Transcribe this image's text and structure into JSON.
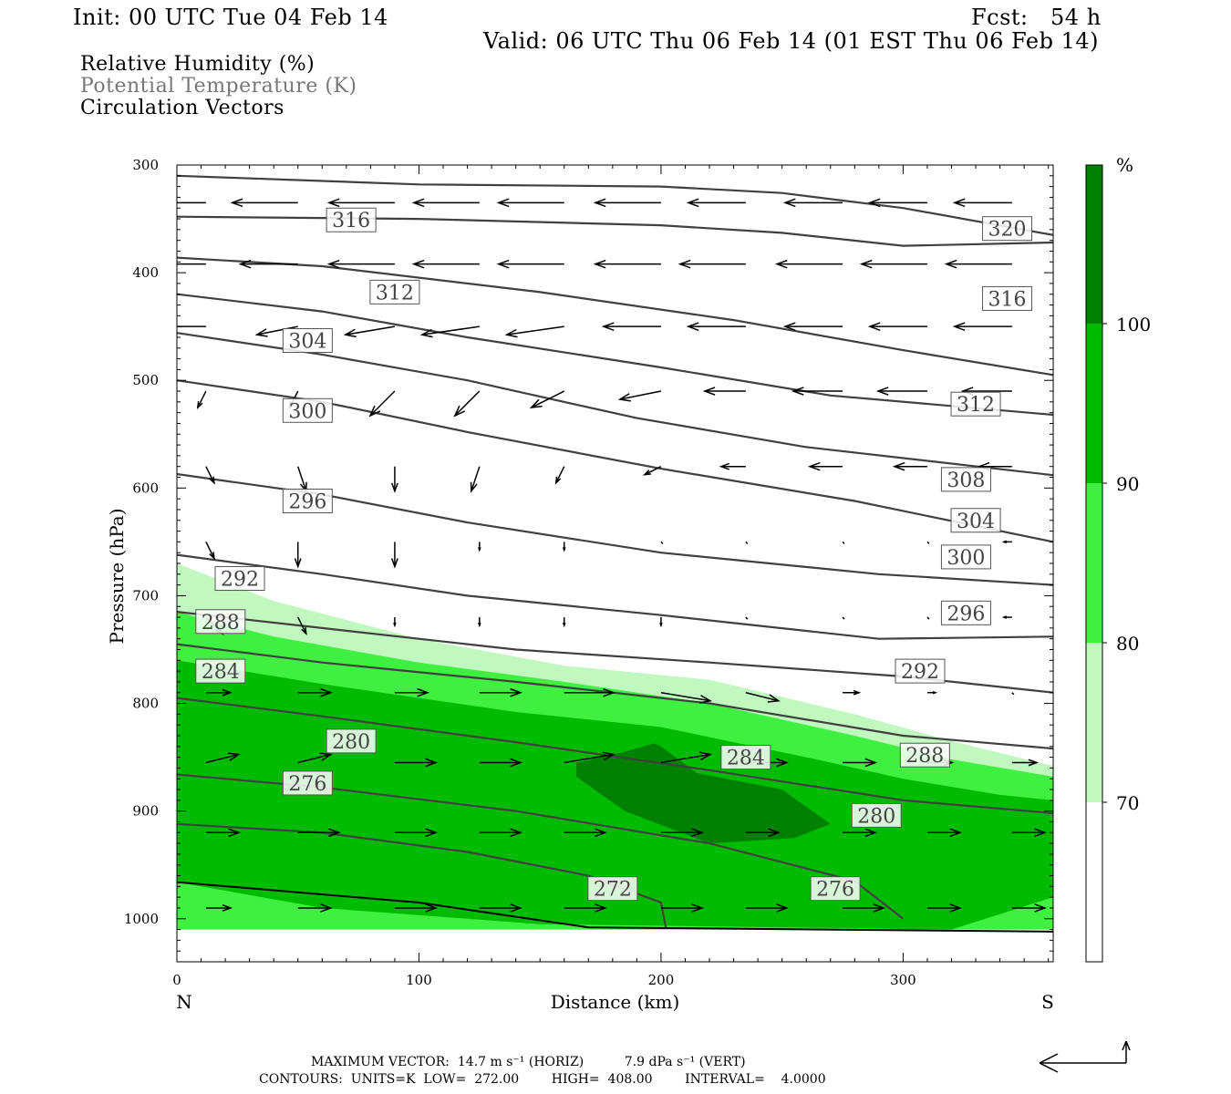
{
  "header": {
    "init": "Init: 00 UTC Tue 04 Feb 14",
    "fcst": "Fcst:   54 h",
    "valid": "Valid: 06 UTC Thu 06 Feb 14 (01 EST Thu 06 Feb 14)"
  },
  "legend": {
    "rh": "Relative Humidity (%)",
    "theta": "Potential Temperature (K)",
    "vectors": "Circulation Vectors"
  },
  "footer": {
    "max_vector": "MAXIMUM VECTOR:  14.7 m s⁻¹ (HORIZ)          7.9 dPa s⁻¹ (VERT)",
    "contours": "CONTOURS:  UNITS=K  LOW=  272.00        HIGH=  408.00        INTERVAL=    4.0000"
  },
  "colors": {
    "rh_70_80": "#c0f8c0",
    "rh_80_90": "#40f040",
    "rh_90_100": "#00bb00",
    "rh_100": "#008000",
    "theta_line": "#404040"
  },
  "chart_data": {
    "type": "cross-section",
    "xlabel": "Distance (km)",
    "ylabel": "Pressure (hPa)",
    "xlim": [
      0,
      362
    ],
    "ylim": [
      1040,
      300
    ],
    "x_ticks": [
      0,
      100,
      200,
      300
    ],
    "y_ticks": [
      300,
      400,
      500,
      600,
      700,
      800,
      900,
      1000
    ],
    "endpoint_left": "N",
    "endpoint_right": "S",
    "colorbar": {
      "unit": "%",
      "levels": [
        70,
        80,
        90,
        100
      ]
    },
    "theta_contours": [
      {
        "value": 320,
        "label": "320",
        "label_at": [
          343,
          359
        ],
        "points": [
          [
            0,
            310
          ],
          [
            100,
            318
          ],
          [
            200,
            320
          ],
          [
            250,
            326
          ],
          [
            300,
            340
          ],
          [
            362,
            365
          ]
        ]
      },
      {
        "value": 316,
        "label": "316",
        "label_at": [
          72,
          351
        ],
        "points": [
          [
            0,
            348
          ],
          [
            100,
            350
          ],
          [
            200,
            356
          ],
          [
            250,
            363
          ],
          [
            300,
            375
          ],
          [
            362,
            372
          ]
        ]
      },
      {
        "value": 316,
        "label": "316",
        "label_at": [
          343,
          424
        ],
        "points": [
          [
            0,
            386
          ],
          [
            60,
            394
          ],
          [
            150,
            418
          ],
          [
            230,
            444
          ],
          [
            300,
            472
          ],
          [
            362,
            495
          ]
        ]
      },
      {
        "value": 312,
        "label": "312",
        "label_at": [
          90,
          418
        ],
        "points": [
          [
            0,
            420
          ],
          [
            60,
            436
          ],
          [
            120,
            460
          ],
          [
            200,
            488
          ],
          [
            270,
            514
          ],
          [
            362,
            532
          ]
        ]
      },
      {
        "value": 312,
        "label": "312",
        "label_at": [
          330,
          522
        ],
        "points": [
          [
            0,
            456
          ],
          [
            60,
            476
          ],
          [
            120,
            500
          ],
          [
            190,
            535
          ],
          [
            260,
            562
          ],
          [
            362,
            588
          ]
        ]
      },
      {
        "value": 304,
        "label": "304",
        "label_at": [
          54,
          463
        ],
        "points": [
          [
            0,
            500
          ],
          [
            60,
            520
          ],
          [
            120,
            548
          ],
          [
            200,
            582
          ],
          [
            280,
            612
          ],
          [
            362,
            650
          ]
        ]
      },
      {
        "value": 300,
        "label": "300",
        "label_at": [
          54,
          528
        ],
        "points": [
          [
            0,
            587
          ],
          [
            60,
            606
          ],
          [
            120,
            632
          ],
          [
            200,
            660
          ],
          [
            290,
            680
          ],
          [
            362,
            690
          ]
        ]
      },
      {
        "value": 296,
        "label": "296",
        "label_at": [
          54,
          612
        ],
        "points": [
          [
            0,
            662
          ],
          [
            60,
            680
          ],
          [
            120,
            700
          ],
          [
            200,
            718
          ],
          [
            290,
            740
          ],
          [
            362,
            738
          ]
        ]
      },
      {
        "value": 292,
        "label": "292",
        "label_at": [
          26,
          684
        ],
        "points": [
          [
            0,
            715
          ],
          [
            60,
            730
          ],
          [
            140,
            750
          ],
          [
            220,
            762
          ],
          [
            300,
            775
          ],
          [
            362,
            790
          ]
        ]
      },
      {
        "value": 288,
        "label": "288",
        "label_at": [
          18,
          724
        ],
        "points": [
          [
            0,
            745
          ],
          [
            60,
            762
          ],
          [
            140,
            780
          ],
          [
            220,
            800
          ],
          [
            300,
            830
          ],
          [
            362,
            842
          ]
        ]
      },
      {
        "value": 284,
        "label": "284",
        "label_at": [
          18,
          770
        ],
        "points": [
          [
            0,
            795
          ],
          [
            60,
            812
          ],
          [
            140,
            836
          ],
          [
            220,
            862
          ],
          [
            300,
            890
          ],
          [
            362,
            902
          ]
        ]
      },
      {
        "value": 280,
        "label": "280",
        "label_at": [
          72,
          835
        ],
        "points": [
          [
            0,
            866
          ],
          [
            60,
            878
          ],
          [
            140,
            900
          ],
          [
            220,
            930
          ],
          [
            280,
            965
          ],
          [
            300,
            1000
          ]
        ]
      },
      {
        "value": 276,
        "label": "276",
        "label_at": [
          54,
          874
        ],
        "points": [
          [
            0,
            912
          ],
          [
            60,
            920
          ],
          [
            120,
            938
          ],
          [
            170,
            960
          ],
          [
            200,
            985
          ],
          [
            202,
            1008
          ]
        ]
      },
      {
        "value": 272,
        "label": "272",
        "label_at": [
          180,
          972
        ],
        "points": []
      },
      {
        "value": 276,
        "label": "276",
        "label_at": [
          272,
          972
        ],
        "points": []
      },
      {
        "value": 280,
        "label": "280",
        "label_at": [
          289,
          904
        ],
        "points": []
      },
      {
        "value": 284,
        "label": "284",
        "label_at": [
          235,
          850
        ],
        "points": []
      },
      {
        "value": 288,
        "label": "288",
        "label_at": [
          309,
          848
        ],
        "points": []
      },
      {
        "value": 292,
        "label": "292",
        "label_at": [
          307,
          770
        ],
        "points": []
      },
      {
        "value": 296,
        "label": "296",
        "label_at": [
          326,
          716
        ],
        "points": []
      },
      {
        "value": 300,
        "label": "300",
        "label_at": [
          326,
          664
        ],
        "points": []
      },
      {
        "value": 304,
        "label": "304",
        "label_at": [
          330,
          630
        ],
        "points": []
      },
      {
        "value": 308,
        "label": "308",
        "label_at": [
          326,
          592
        ],
        "points": []
      }
    ],
    "rh_regions": [
      {
        "level": "70-80",
        "points": [
          [
            0,
            670
          ],
          [
            40,
            705
          ],
          [
            100,
            740
          ],
          [
            160,
            765
          ],
          [
            220,
            778
          ],
          [
            280,
            810
          ],
          [
            320,
            835
          ],
          [
            362,
            858
          ],
          [
            362,
            1010
          ],
          [
            0,
            1010
          ]
        ]
      },
      {
        "level": "80-90",
        "points": [
          [
            0,
            715
          ],
          [
            40,
            738
          ],
          [
            100,
            762
          ],
          [
            160,
            780
          ],
          [
            220,
            800
          ],
          [
            280,
            830
          ],
          [
            320,
            852
          ],
          [
            362,
            868
          ],
          [
            362,
            1010
          ],
          [
            0,
            1010
          ]
        ]
      },
      {
        "level": "90-100",
        "points": [
          [
            0,
            760
          ],
          [
            60,
            782
          ],
          [
            140,
            808
          ],
          [
            200,
            822
          ],
          [
            260,
            850
          ],
          [
            300,
            870
          ],
          [
            340,
            885
          ],
          [
            362,
            890
          ],
          [
            362,
            980
          ],
          [
            320,
            1010
          ],
          [
            150,
            1005
          ],
          [
            60,
            990
          ],
          [
            0,
            966
          ]
        ]
      },
      {
        "level": ">100",
        "points": [
          [
            165,
            855
          ],
          [
            185,
            845
          ],
          [
            197,
            837
          ],
          [
            200,
            840
          ],
          [
            215,
            865
          ],
          [
            250,
            880
          ],
          [
            270,
            912
          ],
          [
            255,
            925
          ],
          [
            220,
            930
          ],
          [
            185,
            900
          ],
          [
            165,
            868
          ]
        ]
      }
    ],
    "vectors": {
      "rows_hpa": [
        335,
        392,
        450,
        510,
        580,
        650,
        720,
        790,
        855,
        920,
        990
      ],
      "x_km": [
        12,
        50,
        90,
        125,
        160,
        200,
        235,
        275,
        310,
        345
      ],
      "u": [
        [
          -9,
          -8,
          -8,
          -8,
          -8,
          -8,
          -7,
          -7,
          -7,
          -7
        ],
        [
          -8,
          -7,
          -8,
          -8,
          -8,
          -8,
          -8,
          -8,
          -8,
          -8
        ],
        [
          -5,
          -5,
          -6,
          -7,
          -7,
          -7,
          -7,
          -7,
          -7,
          -7
        ],
        [
          -1,
          -1,
          -3,
          -3,
          -4,
          -5,
          -5,
          -6,
          -6,
          -6
        ],
        [
          1,
          1,
          0,
          -1,
          -1,
          -2,
          -3,
          -4,
          -4,
          -4
        ],
        [
          1,
          0,
          0,
          0,
          0,
          0,
          0,
          0,
          0,
          -1
        ],
        [
          2,
          1,
          0,
          0,
          0,
          0,
          0,
          0,
          0,
          -1
        ],
        [
          3,
          4,
          4,
          5,
          6,
          6,
          4,
          2,
          1,
          0
        ],
        [
          4,
          4,
          5,
          5,
          6,
          6,
          5,
          4,
          3,
          3
        ],
        [
          4,
          5,
          5,
          5,
          5,
          5,
          4,
          4,
          4,
          4
        ],
        [
          3,
          4,
          5,
          5,
          5,
          5,
          5,
          5,
          4,
          4
        ]
      ],
      "w": [
        [
          0,
          0,
          0,
          0,
          0,
          0,
          0,
          0,
          0,
          0
        ],
        [
          0,
          0,
          0,
          0,
          0,
          0,
          0,
          0,
          0,
          0
        ],
        [
          0,
          1,
          1,
          1,
          1,
          0,
          0,
          0,
          0,
          0
        ],
        [
          2,
          2,
          3,
          3,
          2,
          1,
          0,
          0,
          0,
          0
        ],
        [
          2,
          3,
          3,
          3,
          2,
          1,
          0,
          0,
          0,
          0
        ],
        [
          2,
          3,
          3,
          1,
          1,
          0,
          0,
          0,
          0,
          0
        ],
        [
          2,
          2,
          1,
          1,
          1,
          1,
          0,
          0,
          0,
          0
        ],
        [
          0,
          0,
          0,
          0,
          0,
          1,
          1,
          0,
          0,
          0
        ],
        [
          -1,
          -1,
          0,
          0,
          -1,
          -1,
          0,
          0,
          0,
          0
        ],
        [
          0,
          0,
          0,
          0,
          0,
          0,
          0,
          0,
          0,
          0
        ],
        [
          0,
          0,
          0,
          0,
          0,
          0,
          0,
          0,
          0,
          0
        ]
      ]
    }
  }
}
